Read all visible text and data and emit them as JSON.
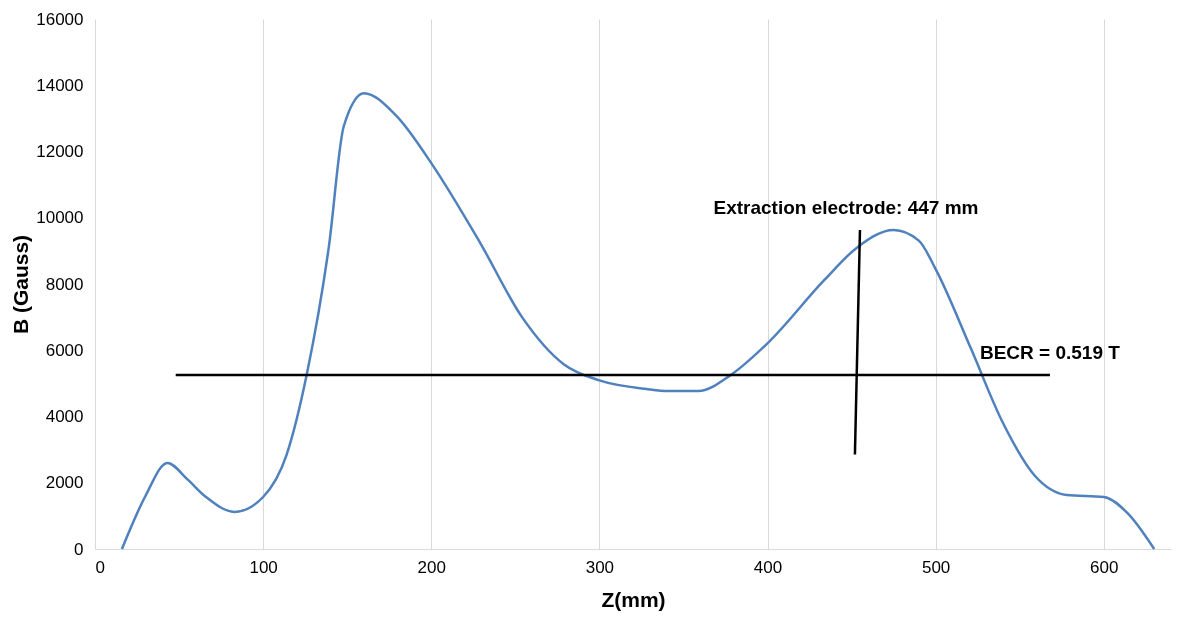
{
  "chart_data": {
    "type": "line",
    "xlabel": "Z(mm)",
    "ylabel": "B (Gauss)",
    "xlim": [
      0,
      640
    ],
    "xticks": [
      0,
      100,
      200,
      300,
      400,
      500,
      600
    ],
    "ylim": [
      0,
      16000
    ],
    "yticks": [
      0,
      2000,
      4000,
      6000,
      8000,
      10000,
      12000,
      14000,
      16000
    ],
    "grid": "x",
    "series": [
      {
        "color": "#4f81bd",
        "x": [
          16,
          30,
          43,
          55,
          66,
          83,
          100,
          114,
          126,
          139,
          148,
          160,
          179,
          200,
          229,
          254,
          279,
          300,
          328,
          341,
          359,
          378,
          400,
          434,
          453,
          475,
          490,
          500,
          521,
          540,
          559,
          578,
          600,
          614,
          630
        ],
        "values": [
          0,
          1600,
          2600,
          2100,
          1570,
          1120,
          1570,
          2850,
          5280,
          9090,
          12770,
          13760,
          13090,
          11650,
          9250,
          7000,
          5570,
          5090,
          4830,
          4770,
          4770,
          5250,
          6210,
          8130,
          9090,
          9630,
          9310,
          8450,
          6050,
          3810,
          2210,
          1630,
          1570,
          1090,
          0
        ]
      },
      {
        "color": "#000000",
        "x": [
          48,
          568
        ],
        "values": [
          5250,
          5250
        ]
      },
      {
        "color": "#000000",
        "x": [
          455,
          452
        ],
        "values": [
          9630,
          2850
        ]
      }
    ],
    "annotations": [
      "Extraction electrode: 447 mm",
      "BECR = 0.519 T"
    ]
  }
}
